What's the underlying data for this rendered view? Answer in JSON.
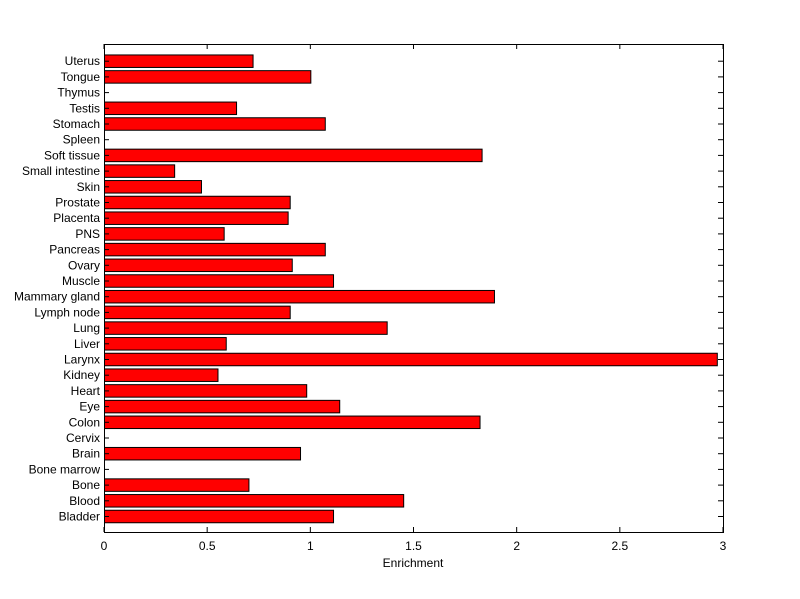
{
  "chart_data": {
    "type": "bar",
    "orientation": "horizontal",
    "categories": [
      "Bladder",
      "Blood",
      "Bone",
      "Bone marrow",
      "Brain",
      "Cervix",
      "Colon",
      "Eye",
      "Heart",
      "Kidney",
      "Larynx",
      "Liver",
      "Lung",
      "Lymph node",
      "Mammary gland",
      "Muscle",
      "Ovary",
      "Pancreas",
      "PNS",
      "Placenta",
      "Prostate",
      "Skin",
      "Small intestine",
      "Soft tissue",
      "Spleen",
      "Stomach",
      "Testis",
      "Thymus",
      "Tongue",
      "Uterus"
    ],
    "values": [
      1.11,
      1.45,
      0.7,
      0,
      0.95,
      0,
      1.82,
      1.14,
      0.98,
      0.55,
      2.97,
      0.59,
      1.37,
      0.9,
      1.89,
      1.11,
      0.91,
      1.07,
      0.58,
      0.89,
      0.9,
      0.47,
      0.34,
      1.83,
      0,
      1.07,
      0.64,
      0,
      1.0,
      0.72
    ],
    "title": "",
    "xlabel": "Enrichment",
    "ylabel": "",
    "xlim": [
      0,
      3
    ],
    "xticks": [
      0,
      0.5,
      1,
      1.5,
      2,
      2.5,
      3
    ],
    "xtick_labels": [
      "0",
      "0.5",
      "1",
      "1.5",
      "2",
      "2.5",
      "3"
    ],
    "grid": false,
    "legend": "none",
    "bar_color": "#ff0000",
    "edge_color": "#000000"
  }
}
